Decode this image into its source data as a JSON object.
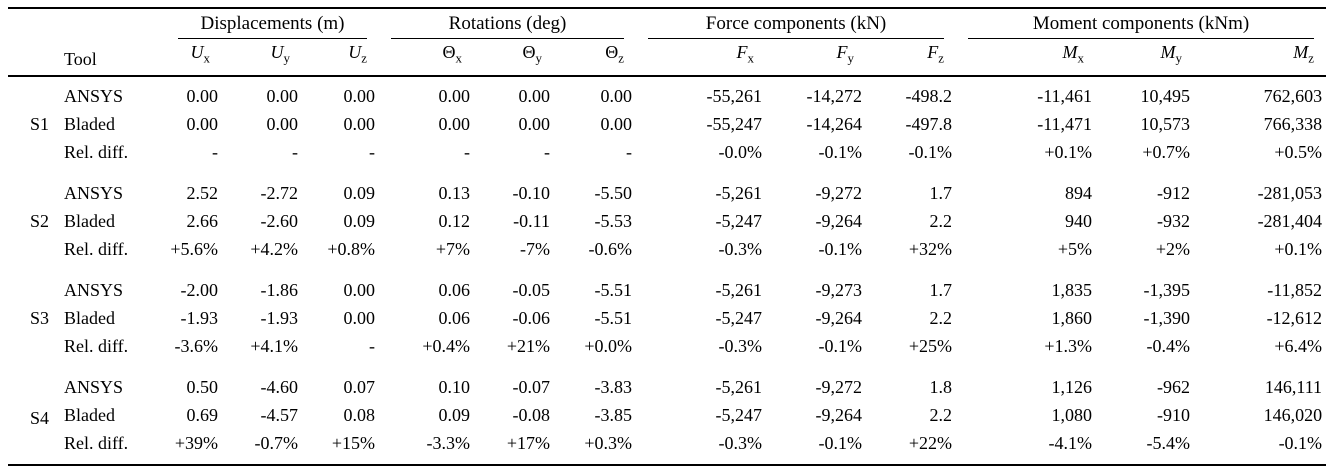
{
  "table": {
    "tool_header": "Tool",
    "col_groups": [
      {
        "label": "Displacements (m)",
        "cols": [
          {
            "base": "U",
            "sub": "x",
            "italic": true,
            "name": "u-x"
          },
          {
            "base": "U",
            "sub": "y",
            "italic": true,
            "name": "u-y"
          },
          {
            "base": "U",
            "sub": "z",
            "italic": true,
            "name": "u-z"
          }
        ]
      },
      {
        "label": "Rotations (deg)",
        "cols": [
          {
            "base": "Θ",
            "sub": "x",
            "italic": false,
            "name": "theta-x"
          },
          {
            "base": "Θ",
            "sub": "y",
            "italic": false,
            "name": "theta-y"
          },
          {
            "base": "Θ",
            "sub": "z",
            "italic": false,
            "name": "theta-z"
          }
        ]
      },
      {
        "label": "Force components (kN)",
        "cols": [
          {
            "base": "F",
            "sub": "x",
            "italic": true,
            "name": "f-x"
          },
          {
            "base": "F",
            "sub": "y",
            "italic": true,
            "name": "f-y"
          },
          {
            "base": "F",
            "sub": "z",
            "italic": true,
            "name": "f-z"
          }
        ]
      },
      {
        "label": "Moment components (kNm)",
        "cols": [
          {
            "base": "M",
            "sub": "x",
            "italic": true,
            "name": "m-x"
          },
          {
            "base": "M",
            "sub": "y",
            "italic": true,
            "name": "m-y"
          },
          {
            "base": "M",
            "sub": "z",
            "italic": true,
            "name": "m-z"
          }
        ]
      }
    ],
    "groups": [
      {
        "id": "S1",
        "rows": [
          {
            "tool": "ANSYS",
            "values": [
              "0.00",
              "0.00",
              "0.00",
              "0.00",
              "0.00",
              "0.00",
              "-55,261",
              "-14,272",
              "-498.2",
              "-11,461",
              "10,495",
              "762,603"
            ]
          },
          {
            "tool": "Bladed",
            "values": [
              "0.00",
              "0.00",
              "0.00",
              "0.00",
              "0.00",
              "0.00",
              "-55,247",
              "-14,264",
              "-497.8",
              "-11,471",
              "10,573",
              "766,338"
            ]
          },
          {
            "tool": "Rel. diff.",
            "values": [
              "-",
              "-",
              "-",
              "-",
              "-",
              "-",
              "-0.0%",
              "-0.1%",
              "-0.1%",
              "+0.1%",
              "+0.7%",
              "+0.5%"
            ]
          }
        ]
      },
      {
        "id": "S2",
        "rows": [
          {
            "tool": "ANSYS",
            "values": [
              "2.52",
              "-2.72",
              "0.09",
              "0.13",
              "-0.10",
              "-5.50",
              "-5,261",
              "-9,272",
              "1.7",
              "894",
              "-912",
              "-281,053"
            ]
          },
          {
            "tool": "Bladed",
            "values": [
              "2.66",
              "-2.60",
              "0.09",
              "0.12",
              "-0.11",
              "-5.53",
              "-5,247",
              "-9,264",
              "2.2",
              "940",
              "-932",
              "-281,404"
            ]
          },
          {
            "tool": "Rel. diff.",
            "values": [
              "+5.6%",
              "+4.2%",
              "+0.8%",
              "+7%",
              "-7%",
              "-0.6%",
              "-0.3%",
              "-0.1%",
              "+32%",
              "+5%",
              "+2%",
              "+0.1%"
            ]
          }
        ]
      },
      {
        "id": "S3",
        "rows": [
          {
            "tool": "ANSYS",
            "values": [
              "-2.00",
              "-1.86",
              "0.00",
              "0.06",
              "-0.05",
              "-5.51",
              "-5,261",
              "-9,273",
              "1.7",
              "1,835",
              "-1,395",
              "-11,852"
            ]
          },
          {
            "tool": "Bladed",
            "values": [
              "-1.93",
              "-1.93",
              "0.00",
              "0.06",
              "-0.06",
              "-5.51",
              "-5,247",
              "-9,264",
              "2.2",
              "1,860",
              "-1,390",
              "-12,612"
            ]
          },
          {
            "tool": "Rel. diff.",
            "values": [
              "-3.6%",
              "+4.1%",
              "-",
              "+0.4%",
              "+21%",
              "+0.0%",
              "-0.3%",
              "-0.1%",
              "+25%",
              "+1.3%",
              "-0.4%",
              "+6.4%"
            ]
          }
        ]
      },
      {
        "id": "S4",
        "rows": [
          {
            "tool": "ANSYS",
            "values": [
              "0.50",
              "-4.60",
              "0.07",
              "0.10",
              "-0.07",
              "-3.83",
              "-5,261",
              "-9,272",
              "1.8",
              "1,126",
              "-962",
              "146,111"
            ]
          },
          {
            "tool": "Bladed",
            "values": [
              "0.69",
              "-4.57",
              "0.08",
              "0.09",
              "-0.08",
              "-3.85",
              "-5,247",
              "-9,264",
              "2.2",
              "1,080",
              "-910",
              "146,020"
            ]
          },
          {
            "tool": "Rel. diff.",
            "values": [
              "+39%",
              "-0.7%",
              "+15%",
              "-3.3%",
              "+17%",
              "+0.3%",
              "-0.3%",
              "-0.1%",
              "+22%",
              "-4.1%",
              "-5.4%",
              "-0.1%"
            ]
          }
        ]
      }
    ]
  }
}
